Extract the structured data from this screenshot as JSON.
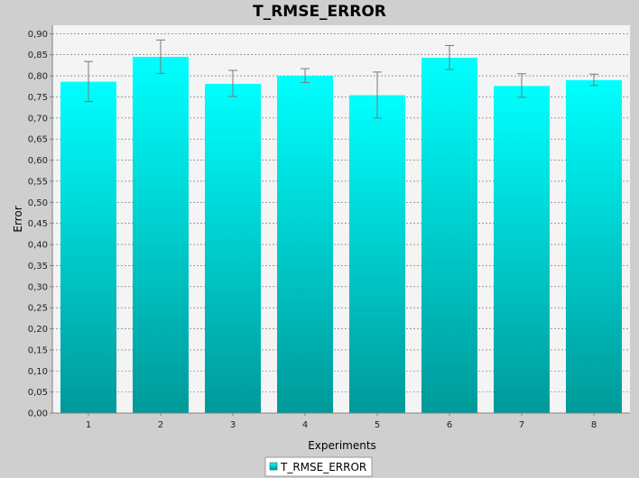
{
  "chart_data": {
    "type": "bar",
    "title": "T_RMSE_ERROR",
    "xlabel": "Experiments",
    "ylabel": "Error",
    "categories": [
      "1",
      "2",
      "3",
      "4",
      "5",
      "6",
      "7",
      "8"
    ],
    "series": [
      {
        "name": "T_RMSE_ERROR",
        "values": [
          0.786,
          0.845,
          0.781,
          0.8,
          0.754,
          0.843,
          0.776,
          0.79
        ],
        "error_low": [
          0.739,
          0.806,
          0.751,
          0.784,
          0.7,
          0.815,
          0.749,
          0.777
        ],
        "error_high": [
          0.834,
          0.885,
          0.813,
          0.817,
          0.809,
          0.872,
          0.805,
          0.804
        ]
      }
    ],
    "ylim": [
      0,
      0.92
    ],
    "yticks": [
      "0,00",
      "0,05",
      "0,10",
      "0,15",
      "0,20",
      "0,25",
      "0,30",
      "0,35",
      "0,40",
      "0,45",
      "0,50",
      "0,55",
      "0,60",
      "0,65",
      "0,70",
      "0,75",
      "0,80",
      "0,85",
      "0,90"
    ],
    "grid": true,
    "legend_position": "bottom",
    "colors": {
      "bar_top": "#00ffff",
      "bar_bottom": "#009999",
      "plot_bg": "#f4f4f4",
      "page_bg": "#cfcfcf",
      "grid": "#666666",
      "error_bar": "#7a7a7a"
    }
  }
}
